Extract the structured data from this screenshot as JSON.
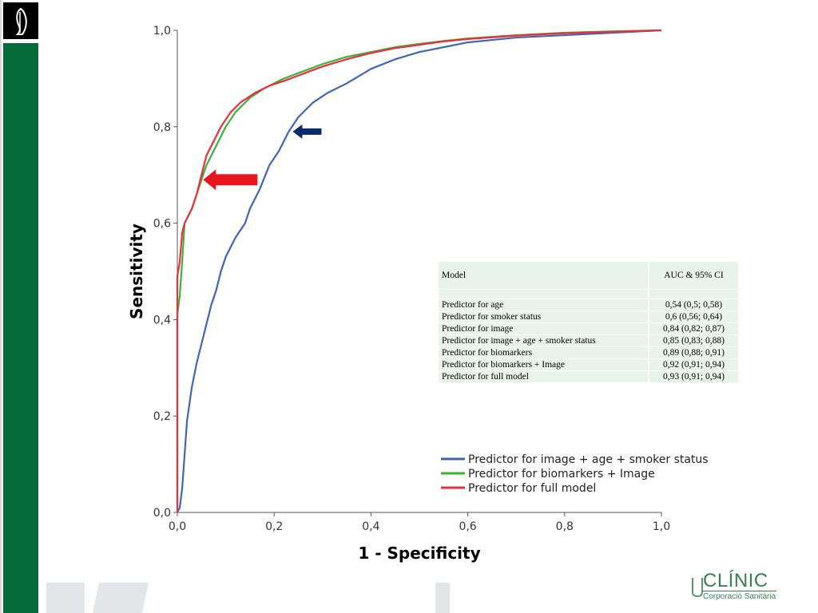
{
  "chart_data": {
    "type": "line",
    "xlabel": "1 - Specificity",
    "ylabel": "Sensitivity",
    "xlim": [
      0,
      1
    ],
    "ylim": [
      0,
      1
    ],
    "x_ticks": [
      "0,0",
      "0,2",
      "0,4",
      "0,6",
      "0,8",
      "1,0"
    ],
    "y_ticks": [
      "0,0",
      "0,2",
      "0,4",
      "0,6",
      "0,8",
      "1,0"
    ],
    "legend_position": "bottom-right",
    "series": [
      {
        "name": "Predictor for image + age + smoker status",
        "color": "#4264b4",
        "points": [
          [
            0,
            0
          ],
          [
            0.005,
            0.01
          ],
          [
            0.01,
            0.05
          ],
          [
            0.015,
            0.12
          ],
          [
            0.02,
            0.19
          ],
          [
            0.03,
            0.26
          ],
          [
            0.04,
            0.31
          ],
          [
            0.05,
            0.35
          ],
          [
            0.06,
            0.39
          ],
          [
            0.07,
            0.43
          ],
          [
            0.08,
            0.46
          ],
          [
            0.09,
            0.5
          ],
          [
            0.1,
            0.53
          ],
          [
            0.12,
            0.57
          ],
          [
            0.14,
            0.6
          ],
          [
            0.15,
            0.63
          ],
          [
            0.17,
            0.67
          ],
          [
            0.19,
            0.72
          ],
          [
            0.21,
            0.75
          ],
          [
            0.23,
            0.79
          ],
          [
            0.25,
            0.82
          ],
          [
            0.28,
            0.85
          ],
          [
            0.31,
            0.87
          ],
          [
            0.35,
            0.89
          ],
          [
            0.4,
            0.92
          ],
          [
            0.45,
            0.94
          ],
          [
            0.5,
            0.955
          ],
          [
            0.55,
            0.965
          ],
          [
            0.6,
            0.975
          ],
          [
            0.7,
            0.985
          ],
          [
            0.8,
            0.99
          ],
          [
            0.9,
            0.995
          ],
          [
            1.0,
            1.0
          ]
        ]
      },
      {
        "name": "Predictor for biomarkers + Image",
        "color": "#3bb33b",
        "points": [
          [
            0,
            0
          ],
          [
            0,
            0.41
          ],
          [
            0.005,
            0.45
          ],
          [
            0.01,
            0.52
          ],
          [
            0.015,
            0.6
          ],
          [
            0.02,
            0.61
          ],
          [
            0.03,
            0.63
          ],
          [
            0.04,
            0.66
          ],
          [
            0.05,
            0.69
          ],
          [
            0.06,
            0.72
          ],
          [
            0.08,
            0.76
          ],
          [
            0.1,
            0.8
          ],
          [
            0.12,
            0.83
          ],
          [
            0.15,
            0.86
          ],
          [
            0.18,
            0.88
          ],
          [
            0.22,
            0.9
          ],
          [
            0.26,
            0.915
          ],
          [
            0.3,
            0.93
          ],
          [
            0.35,
            0.945
          ],
          [
            0.4,
            0.955
          ],
          [
            0.45,
            0.965
          ],
          [
            0.5,
            0.972
          ],
          [
            0.55,
            0.978
          ],
          [
            0.6,
            0.983
          ],
          [
            0.7,
            0.99
          ],
          [
            0.8,
            0.995
          ],
          [
            0.9,
            0.998
          ],
          [
            1.0,
            1.0
          ]
        ]
      },
      {
        "name": "Predictor for full model",
        "color": "#e8303c",
        "points": [
          [
            0,
            0
          ],
          [
            0,
            0.49
          ],
          [
            0.005,
            0.52
          ],
          [
            0.01,
            0.58
          ],
          [
            0.015,
            0.6
          ],
          [
            0.02,
            0.61
          ],
          [
            0.03,
            0.63
          ],
          [
            0.04,
            0.66
          ],
          [
            0.05,
            0.7
          ],
          [
            0.06,
            0.74
          ],
          [
            0.07,
            0.76
          ],
          [
            0.09,
            0.8
          ],
          [
            0.11,
            0.83
          ],
          [
            0.13,
            0.85
          ],
          [
            0.16,
            0.87
          ],
          [
            0.19,
            0.885
          ],
          [
            0.22,
            0.895
          ],
          [
            0.26,
            0.91
          ],
          [
            0.3,
            0.925
          ],
          [
            0.35,
            0.94
          ],
          [
            0.4,
            0.953
          ],
          [
            0.45,
            0.963
          ],
          [
            0.5,
            0.97
          ],
          [
            0.55,
            0.977
          ],
          [
            0.6,
            0.982
          ],
          [
            0.7,
            0.989
          ],
          [
            0.8,
            0.994
          ],
          [
            0.9,
            0.997
          ],
          [
            1.0,
            1.0
          ]
        ]
      }
    ],
    "annotations": [
      {
        "type": "arrow",
        "color": "#e8161c",
        "points_to": [
          0.05,
          0.69
        ],
        "direction": "left"
      },
      {
        "type": "arrow",
        "color": "#0a2a6e",
        "points_to": [
          0.235,
          0.79
        ],
        "direction": "left"
      }
    ],
    "table": {
      "header": [
        "Model",
        "AUC & 95% CI"
      ],
      "rows": [
        [
          "Predictor for age",
          "0,54 (0,5; 0,58)"
        ],
        [
          "Predictor for smoker status",
          "0,6 (0,56; 0,64)"
        ],
        [
          "Predictor for image",
          "0,84 (0,82; 0,87)"
        ],
        [
          "Predictor for image + age + smoker status",
          "0,85 (0,83; 0,88)"
        ],
        [
          "Predictor for biomarkers",
          "0,89 (0,88; 0,91)"
        ],
        [
          "Predictor for biomarkers + Image",
          "0,92 (0,91; 0,94)"
        ],
        [
          "Predictor for full model",
          "0,93 (0,91; 0,94)"
        ]
      ]
    }
  },
  "branding": {
    "name": "CLÍNIC",
    "subtitle": "Corporació Sanitària",
    "accent": "#066b3a"
  }
}
